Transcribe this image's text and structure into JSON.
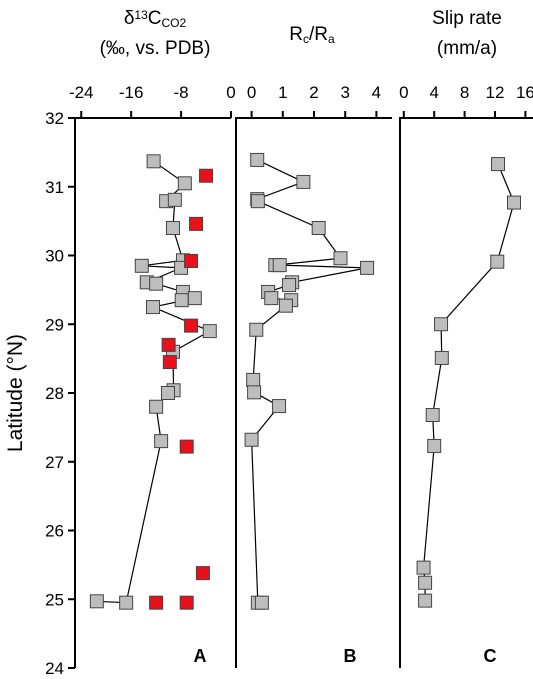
{
  "chart_data": [
    {
      "type": "scatter",
      "title": [
        "δ",
        "13",
        "C",
        "CO2"
      ],
      "subtitle": "(‰, vs. PDB)",
      "ylabel": "Latitude (°N)",
      "panel_label": "A",
      "xlim": [
        -25,
        0
      ],
      "xticks": [
        -24,
        -16,
        -8,
        0
      ],
      "ylim": [
        24,
        32
      ],
      "yticks": [
        24,
        25,
        26,
        27,
        28,
        29,
        30,
        31,
        32
      ],
      "series": [
        {
          "color": "#bdbdbd",
          "line": true,
          "x": [
            -12.4,
            -7.4,
            -10.4,
            -9.0,
            -9.3,
            -7.7,
            -14.3,
            -8.0,
            -13.5,
            -12.0,
            -7.7,
            -7.9,
            -5.8,
            -12.5,
            -3.4,
            -9.3,
            -9.2,
            -10.1,
            -12.0,
            -11.2,
            -16.8,
            -21.5
          ],
          "y": [
            31.37,
            31.05,
            30.79,
            30.81,
            30.4,
            29.93,
            29.85,
            29.82,
            29.61,
            29.59,
            29.47,
            29.35,
            29.38,
            29.25,
            28.9,
            28.6,
            28.04,
            28.0,
            27.8,
            27.3,
            24.95,
            24.97
          ]
        },
        {
          "color": "#e8101a",
          "line": false,
          "x": [
            -4.0,
            -5.6,
            -6.4,
            -6.4,
            -10.0,
            -9.8,
            -7.1,
            -4.5,
            -12.0,
            -7.1
          ],
          "y": [
            31.16,
            30.46,
            29.92,
            28.98,
            28.7,
            28.45,
            27.22,
            25.38,
            24.95,
            24.95
          ]
        }
      ]
    },
    {
      "type": "scatter",
      "title": [
        "R",
        "c",
        "/R",
        "a"
      ],
      "panel_label": "B",
      "xlim": [
        -0.5,
        4.5
      ],
      "xticks": [
        0,
        1,
        2,
        3,
        4
      ],
      "ylim": [
        24,
        32
      ],
      "series": [
        {
          "color": "#bdbdbd",
          "line": true,
          "x": [
            0.18,
            1.66,
            0.18,
            0.2,
            2.15,
            2.85,
            0.76,
            0.9,
            3.7,
            1.3,
            1.2,
            0.53,
            0.63,
            1.27,
            1.1,
            0.15,
            0.05,
            0.08,
            0.88,
            0.0,
            0.2,
            0.33
          ],
          "y": [
            31.39,
            31.07,
            30.82,
            30.79,
            30.4,
            29.96,
            29.86,
            29.86,
            29.82,
            29.61,
            29.57,
            29.47,
            29.38,
            29.35,
            29.27,
            28.92,
            28.19,
            28.01,
            27.81,
            27.32,
            24.95,
            24.95
          ]
        }
      ]
    },
    {
      "type": "scatter",
      "title": [
        "Slip rate"
      ],
      "subtitle": "(mm/a)",
      "panel_label": "C",
      "xlim": [
        -0.5,
        17
      ],
      "xticks": [
        0,
        4,
        8,
        12,
        16
      ],
      "ylim": [
        24,
        32
      ],
      "series": [
        {
          "color": "#bdbdbd",
          "line": true,
          "x": [
            12.4,
            14.5,
            12.3,
            4.9,
            5.0,
            3.8,
            4.0,
            2.6,
            2.8,
            2.8
          ],
          "y": [
            31.33,
            30.77,
            29.91,
            29.0,
            28.51,
            27.68,
            27.23,
            25.46,
            25.24,
            24.98
          ]
        }
      ]
    }
  ]
}
